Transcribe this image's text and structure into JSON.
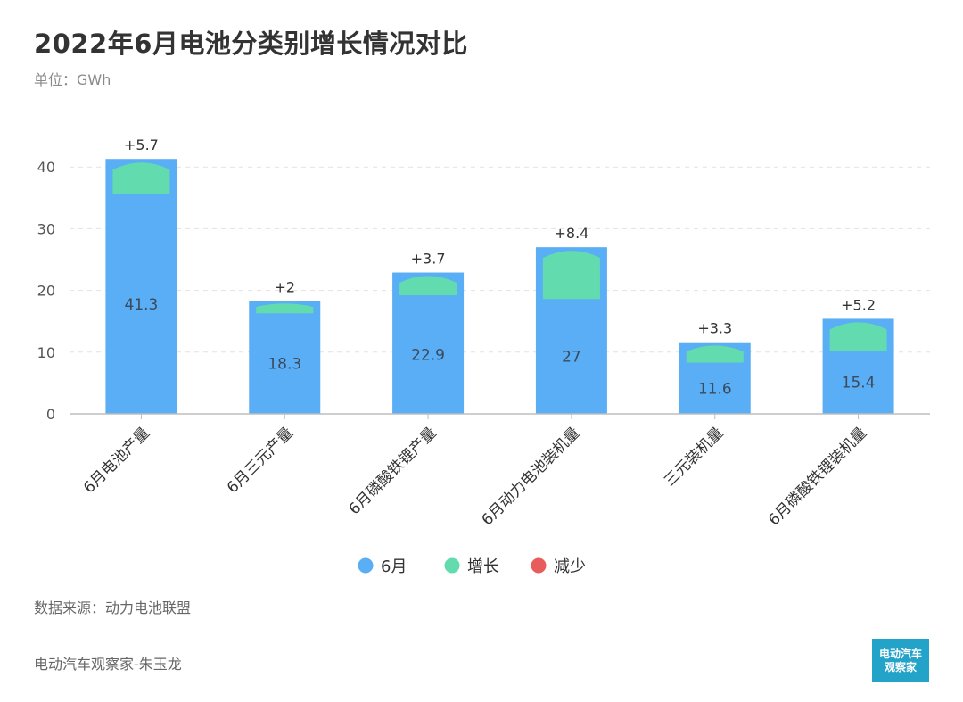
{
  "header": {
    "title": "2022年6月电池分类别增长情况对比",
    "unit": "单位：GWh"
  },
  "footer": {
    "source": "数据来源：动力电池联盟",
    "author": "电动汽车观察家-朱玉龙",
    "logo_line1": "电动汽车",
    "logo_line2": "观察家"
  },
  "colors": {
    "june": "#5aaef5",
    "increase": "#62dbae",
    "decrease": "#e85c5c",
    "grid": "#e2e2e2",
    "axis": "#bdbdbd"
  },
  "chart_data": {
    "type": "bar",
    "categories": [
      "6月电池产量",
      "6月三元产量",
      "6月磷酸铁锂产量",
      "6月动力电池装机量",
      "三元装机量",
      "6月磷酸铁锂装机量"
    ],
    "series": [
      {
        "name": "6月",
        "values": [
          41.3,
          18.3,
          22.9,
          27,
          11.6,
          15.4
        ],
        "labels": [
          "41.3",
          "18.3",
          "22.9",
          "27",
          "11.6",
          "15.4"
        ]
      },
      {
        "name": "增长",
        "values": [
          5.7,
          2,
          3.7,
          8.4,
          3.3,
          5.2
        ],
        "labels": [
          "+5.7",
          "+2",
          "+3.7",
          "+8.4",
          "+3.3",
          "+5.2"
        ]
      },
      {
        "name": "减少",
        "values": [
          0,
          0,
          0,
          0,
          0,
          0
        ]
      }
    ],
    "yticks": [
      0,
      10,
      20,
      30,
      40
    ],
    "ylim": [
      0,
      45
    ],
    "grid": true,
    "legend_position": "bottom"
  }
}
